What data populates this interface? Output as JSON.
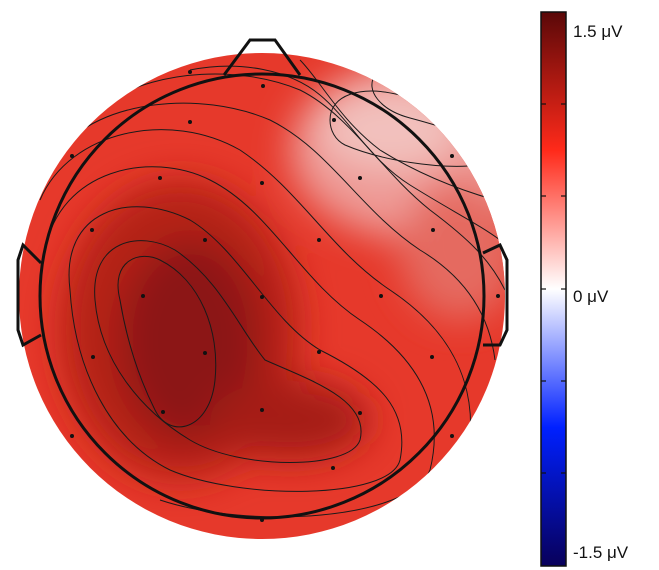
{
  "chart_data": {
    "type": "heatmap",
    "colorbar": {
      "max_label": "1.5 μV",
      "mid_label": "0 μV",
      "min_label": "-1.5 μV",
      "range": [
        -1.5,
        1.5
      ],
      "colormap": [
        "#08005a",
        "#0020ff",
        "#ffffff",
        "#ff2a1a",
        "#5a0808"
      ]
    },
    "peak_positive_region": "left-central",
    "lowest_region": "right-frontal",
    "contour_levels": 12
  }
}
